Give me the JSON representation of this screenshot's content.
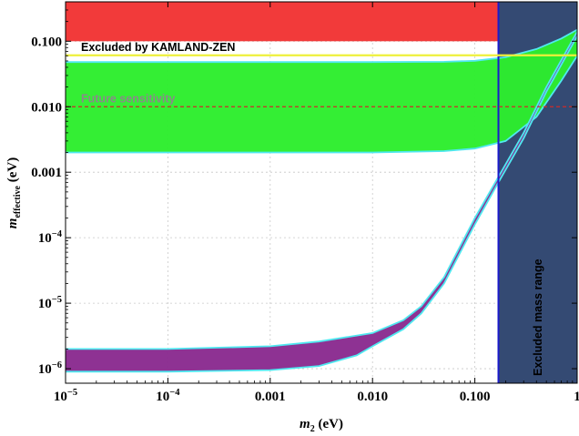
{
  "chart_data": {
    "type": "area",
    "xlabel": "m",
    "xlabel_sub": "2",
    "xlabel_unit": "(eV)",
    "ylabel": "m",
    "ylabel_sub": "effective",
    "ylabel_unit": "(eV)",
    "x_scale": "log",
    "y_scale": "log",
    "xlim": [
      1e-05,
      1.0
    ],
    "ylim": [
      6e-07,
      0.4
    ],
    "grid": true,
    "x_ticks": [
      {
        "value": 1e-05,
        "base": "10",
        "exp": "−5"
      },
      {
        "value": 0.0001,
        "base": "10",
        "exp": "−4"
      },
      {
        "value": 0.001,
        "text": "0.001"
      },
      {
        "value": 0.01,
        "text": "0.010"
      },
      {
        "value": 0.1,
        "text": "0.100"
      },
      {
        "value": 1.0,
        "text": "1"
      }
    ],
    "y_ticks": [
      {
        "value": 1e-06,
        "base": "10",
        "exp": "−6"
      },
      {
        "value": 1e-05,
        "base": "10",
        "exp": "−5"
      },
      {
        "value": 0.0001,
        "base": "10",
        "exp": "−4"
      },
      {
        "value": 0.001,
        "text": "0.001"
      },
      {
        "value": 0.01,
        "text": "0.010"
      },
      {
        "value": 0.1,
        "text": "0.100"
      }
    ],
    "regions": [
      {
        "name": "excluded-double-beta",
        "kind": "y-above",
        "y": 0.1,
        "x_max": 0.17,
        "color": "#f23a3a"
      },
      {
        "name": "excluded-mass-range",
        "kind": "x-above",
        "x": 0.17,
        "color": "#344a73",
        "edge_color": "#1a1acc",
        "label": "Excluded mass range"
      }
    ],
    "series": [
      {
        "name": "inverted-hierarchy-band",
        "fill": "#2ded2d",
        "edge": "#4fe8f0",
        "upper": [
          [
            1e-05,
            0.048
          ],
          [
            0.01,
            0.048
          ],
          [
            0.05,
            0.0485
          ],
          [
            0.1,
            0.0502
          ],
          [
            0.2,
            0.057
          ],
          [
            0.4,
            0.076
          ],
          [
            0.7,
            0.11
          ],
          [
            1.0,
            0.15
          ]
        ],
        "lower": [
          [
            1e-05,
            0.002
          ],
          [
            0.01,
            0.002
          ],
          [
            0.05,
            0.0021
          ],
          [
            0.1,
            0.0023
          ],
          [
            0.2,
            0.003
          ],
          [
            0.4,
            0.007
          ],
          [
            0.7,
            0.025
          ],
          [
            1.0,
            0.06
          ]
        ]
      },
      {
        "name": "normal-hierarchy-band",
        "fill": "#8a2b8f",
        "edge": "#4fe8f0",
        "upper": [
          [
            1e-05,
            2e-06
          ],
          [
            0.0001,
            2e-06
          ],
          [
            0.001,
            2.2e-06
          ],
          [
            0.003,
            2.6e-06
          ],
          [
            0.01,
            3.5e-06
          ],
          [
            0.02,
            5.5e-06
          ],
          [
            0.03,
            9e-06
          ],
          [
            0.05,
            2.5e-05
          ],
          [
            0.1,
            0.0002
          ],
          [
            0.17,
            0.00085
          ],
          [
            0.3,
            0.004
          ],
          [
            0.5,
            0.02
          ],
          [
            1.0,
            0.14
          ]
        ],
        "lower": [
          [
            1e-05,
            9e-07
          ],
          [
            0.0001,
            9e-07
          ],
          [
            0.001,
            9.5e-07
          ],
          [
            0.003,
            1.1e-06
          ],
          [
            0.007,
            1.6e-06
          ],
          [
            0.01,
            2.2e-06
          ],
          [
            0.02,
            4e-06
          ],
          [
            0.03,
            7e-06
          ],
          [
            0.05,
            2e-05
          ],
          [
            0.1,
            0.00016
          ],
          [
            0.17,
            0.0007
          ],
          [
            0.3,
            0.0033
          ],
          [
            0.5,
            0.017
          ],
          [
            1.0,
            0.12
          ]
        ]
      }
    ],
    "lines": [
      {
        "name": "kamland-zen-limit",
        "y": 0.061,
        "color": "#eef03a",
        "style": "solid",
        "label": "Excluded by KAMLAND-ZEN",
        "label_color": "#000000"
      },
      {
        "name": "future-sensitivity",
        "y": 0.01,
        "color": "#d02a2a",
        "style": "dashed",
        "label": "Future sensitivity",
        "label_color": "#8a8a8a"
      }
    ]
  }
}
